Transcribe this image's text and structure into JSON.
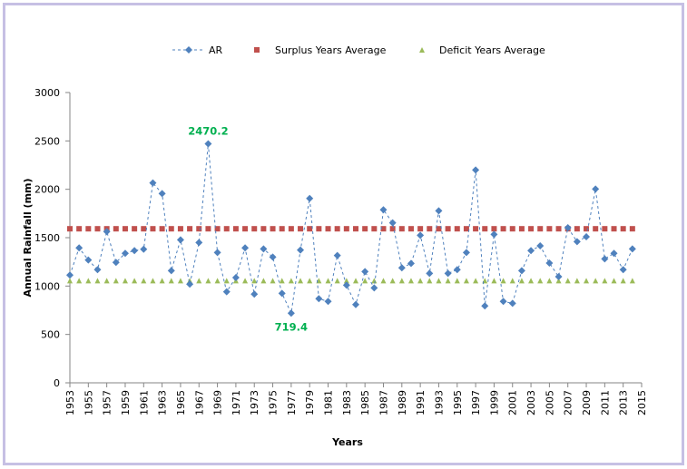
{
  "chart_data": {
    "type": "line",
    "title": "",
    "xlabel": "Years",
    "ylabel": "Annual Rainfall  (mm)",
    "ylim": [
      0,
      3000
    ],
    "yticks": [
      0,
      500,
      1000,
      1500,
      2000,
      2500,
      3000
    ],
    "xlim": [
      1953,
      2015
    ],
    "xticks": [
      1953,
      1955,
      1957,
      1959,
      1961,
      1963,
      1965,
      1967,
      1969,
      1971,
      1973,
      1975,
      1977,
      1979,
      1981,
      1983,
      1985,
      1987,
      1989,
      1991,
      1993,
      1995,
      1997,
      1999,
      2001,
      2003,
      2005,
      2007,
      2009,
      2011,
      2013,
      2015
    ],
    "grid": false,
    "legend_position": "top",
    "x": [
      1953,
      1954,
      1955,
      1956,
      1957,
      1958,
      1959,
      1960,
      1961,
      1962,
      1963,
      1964,
      1965,
      1966,
      1967,
      1968,
      1969,
      1970,
      1971,
      1972,
      1973,
      1974,
      1975,
      1976,
      1977,
      1978,
      1979,
      1980,
      1981,
      1982,
      1983,
      1984,
      1985,
      1986,
      1987,
      1988,
      1989,
      1990,
      1991,
      1992,
      1993,
      1994,
      1995,
      1996,
      1997,
      1998,
      1999,
      2000,
      2001,
      2002,
      2003,
      2004,
      2005,
      2006,
      2007,
      2008,
      2009,
      2010,
      2011,
      2012,
      2013,
      2014
    ],
    "series": [
      {
        "name": "AR",
        "style": "dashed-line-diamond",
        "color": "#4f81bd",
        "values": [
          1113,
          1394,
          1269,
          1169,
          1563,
          1244,
          1338,
          1366,
          1381,
          2066,
          1956,
          1159,
          1478,
          1019,
          1450,
          2470.2,
          1347,
          941,
          1088,
          1394,
          916,
          1384,
          1300,
          925,
          719.4,
          1372,
          1906,
          869,
          841,
          1316,
          1009,
          809,
          1150,
          981,
          1788,
          1653,
          1188,
          1234,
          1525,
          1131,
          1778,
          1131,
          1169,
          1347,
          2200,
          794,
          1534,
          841,
          822,
          1159,
          1366,
          1416,
          1238,
          1097,
          1603,
          1459,
          1509,
          2003,
          1281,
          1338,
          1169,
          1384
        ]
      },
      {
        "name": "Surplus Years Average",
        "style": "square-markers",
        "color": "#c0504d",
        "constant": 1592
      },
      {
        "name": "Deficit Years Average",
        "style": "triangle-markers",
        "color": "#9bbb59",
        "constant": 1056
      }
    ],
    "annotations": [
      {
        "text": "2470.2",
        "x": 1968,
        "y": 2470.2,
        "position": "above",
        "color": "#00b050"
      },
      {
        "text": "719.4",
        "x": 1977,
        "y": 719.4,
        "position": "below",
        "color": "#00b050"
      }
    ]
  }
}
